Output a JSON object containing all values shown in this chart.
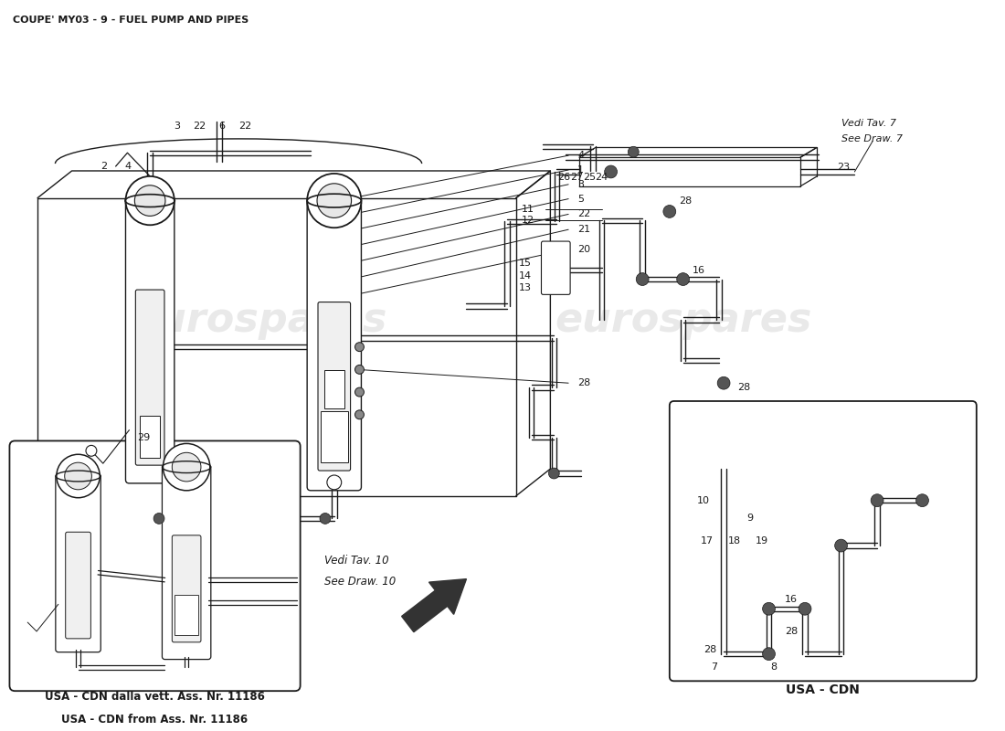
{
  "title": "COUPE' MY03 - 9 - FUEL PUMP AND PIPES",
  "title_fontsize": 8.5,
  "background_color": "#ffffff",
  "line_color": "#1a1a1a",
  "watermark_text": "eurospares",
  "watermark_color": "#c8c8c8",
  "vedi_tav7_line1": "Vedi Tav. 7",
  "vedi_tav7_line2": "See Draw. 7",
  "vedi_tav10_line1": "Vedi Tav. 10",
  "vedi_tav10_line2": "See Draw. 10",
  "usa_cdn_box_text1": "USA - CDN dalla vett. Ass. Nr. 11186",
  "usa_cdn_box_text2": "USA - CDN from Ass. Nr. 11186",
  "usa_cdn_label": "USA - CDN"
}
